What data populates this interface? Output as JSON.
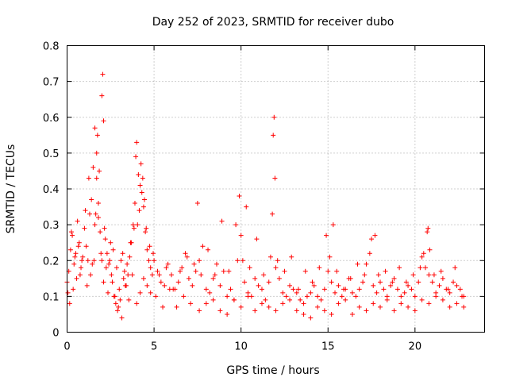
{
  "chart_data": {
    "type": "scatter",
    "title": "Day 252 of 2023, SRMTID for receiver dubo",
    "xlabel": "GPS time / hours",
    "ylabel": "SRMTID / TECUs",
    "xlim": [
      0,
      24
    ],
    "ylim": [
      0,
      0.8
    ],
    "x_ticks": [
      0,
      5,
      10,
      15,
      20
    ],
    "y_ticks": [
      0,
      0.1,
      0.2,
      0.3,
      0.4,
      0.5,
      0.6,
      0.7,
      0.8
    ],
    "x_tick_labels": [
      "0",
      "5",
      "10",
      "15",
      "20"
    ],
    "y_tick_labels": [
      "0",
      "0.1",
      "0.2",
      "0.3",
      "0.4",
      "0.5",
      "0.6",
      "0.7",
      "0.8"
    ],
    "grid": true,
    "marker": "+",
    "colors": {
      "series": "#ff0000",
      "grid": "#a0a0a0",
      "axes": "#000000"
    },
    "series": [
      {
        "name": "SRMTID",
        "x": [
          0.0,
          0.1,
          0.2,
          0.3,
          0.4,
          0.5,
          0.6,
          0.7,
          0.8,
          0.9,
          1.0,
          1.1,
          1.2,
          1.3,
          1.4,
          1.5,
          1.6,
          1.7,
          1.8,
          1.9,
          2.0,
          2.1,
          2.2,
          2.3,
          2.4,
          2.5,
          2.6,
          2.7,
          2.8,
          2.9,
          3.0,
          3.1,
          3.2,
          3.3,
          3.4,
          3.5,
          3.6,
          3.7,
          3.8,
          3.9,
          4.0,
          4.1,
          4.2,
          4.3,
          4.4,
          4.5,
          4.6,
          4.7,
          4.8,
          4.9,
          5.0,
          5.2,
          5.4,
          5.6,
          5.8,
          6.0,
          6.2,
          6.4,
          6.6,
          6.8,
          7.0,
          7.2,
          7.4,
          7.6,
          7.8,
          8.0,
          8.2,
          8.4,
          8.6,
          8.8,
          9.0,
          9.2,
          9.4,
          9.6,
          9.8,
          10.0,
          10.2,
          10.4,
          10.6,
          10.8,
          11.0,
          11.2,
          11.4,
          11.6,
          11.8,
          12.0,
          12.2,
          12.4,
          12.6,
          12.8,
          13.0,
          13.2,
          13.4,
          13.6,
          13.8,
          14.0,
          14.2,
          14.4,
          14.6,
          14.8,
          15.0,
          15.2,
          15.4,
          15.6,
          15.8,
          16.0,
          16.2,
          16.4,
          16.6,
          16.8,
          17.0,
          17.2,
          17.4,
          17.6,
          17.8,
          18.0,
          18.2,
          18.4,
          18.6,
          18.8,
          19.0,
          19.2,
          19.4,
          19.6,
          19.8,
          20.0,
          20.2,
          20.4,
          20.6,
          20.8,
          21.0,
          21.2,
          21.4,
          21.6,
          21.8,
          22.0,
          22.2,
          22.4,
          22.6,
          22.8,
          0.05,
          0.25,
          0.45,
          0.65,
          0.85,
          1.05,
          1.25,
          1.45,
          1.55,
          1.65,
          1.75,
          1.85,
          1.95,
          2.05,
          2.15,
          2.25,
          2.45,
          2.65,
          2.85,
          3.05,
          3.25,
          3.45,
          3.65,
          3.85,
          3.95,
          4.05,
          4.15,
          4.25,
          4.35,
          4.45,
          4.55,
          4.75,
          4.95,
          5.3,
          5.7,
          6.1,
          6.5,
          6.9,
          7.3,
          7.5,
          7.7,
          8.1,
          8.5,
          8.9,
          9.3,
          9.7,
          9.9,
          10.1,
          10.3,
          10.5,
          10.9,
          11.3,
          11.7,
          11.85,
          11.9,
          11.95,
          12.1,
          12.5,
          12.9,
          13.3,
          13.7,
          14.1,
          14.5,
          14.9,
          15.1,
          15.3,
          15.5,
          15.9,
          16.3,
          16.7,
          17.1,
          17.5,
          17.7,
          17.9,
          18.3,
          18.7,
          19.1,
          19.5,
          19.9,
          20.3,
          20.5,
          20.7,
          20.75,
          20.85,
          21.1,
          21.5,
          21.9,
          22.3,
          22.7,
          0.15,
          0.35,
          0.55,
          0.75,
          1.15,
          1.35,
          1.6,
          1.7,
          1.8,
          2.0,
          2.1,
          2.35,
          2.55,
          2.75,
          2.95,
          3.15,
          3.35,
          3.55,
          3.75,
          4.0,
          4.2,
          4.4,
          4.6,
          4.8,
          5.1,
          5.5,
          5.9,
          6.3,
          6.7,
          7.1,
          7.6,
          8.0,
          8.4,
          8.8,
          9.2,
          9.6,
          10.0,
          10.4,
          10.8,
          11.2,
          11.6,
          12.0,
          12.4,
          12.8,
          13.2,
          13.6,
          14.0,
          14.4,
          14.8,
          15.2,
          15.6,
          16.0,
          16.4,
          16.8,
          17.2,
          17.6,
          18.0,
          18.4,
          18.8,
          19.2,
          19.6,
          20.0,
          20.4,
          20.8,
          21.2,
          21.6,
          22.0,
          22.4,
          22.8
        ],
        "y": [
          0.14,
          0.17,
          0.23,
          0.27,
          0.19,
          0.22,
          0.31,
          0.25,
          0.18,
          0.21,
          0.29,
          0.24,
          0.2,
          0.33,
          0.37,
          0.46,
          0.57,
          0.5,
          0.36,
          0.28,
          0.66,
          0.59,
          0.26,
          0.22,
          0.19,
          0.25,
          0.14,
          0.1,
          0.08,
          0.06,
          0.12,
          0.2,
          0.22,
          0.17,
          0.13,
          0.16,
          0.21,
          0.25,
          0.3,
          0.36,
          0.53,
          0.44,
          0.41,
          0.39,
          0.35,
          0.28,
          0.23,
          0.2,
          0.18,
          0.16,
          0.2,
          0.17,
          0.14,
          0.13,
          0.19,
          0.16,
          0.12,
          0.14,
          0.18,
          0.22,
          0.15,
          0.13,
          0.17,
          0.2,
          0.24,
          0.12,
          0.11,
          0.15,
          0.19,
          0.13,
          0.17,
          0.1,
          0.12,
          0.09,
          0.2,
          0.27,
          0.14,
          0.11,
          0.1,
          0.15,
          0.13,
          0.12,
          0.09,
          0.14,
          0.33,
          0.18,
          0.15,
          0.11,
          0.1,
          0.13,
          0.12,
          0.11,
          0.09,
          0.08,
          0.1,
          0.11,
          0.13,
          0.1,
          0.09,
          0.12,
          0.17,
          0.14,
          0.11,
          0.13,
          0.1,
          0.12,
          0.15,
          0.11,
          0.1,
          0.12,
          0.14,
          0.19,
          0.22,
          0.13,
          0.11,
          0.14,
          0.12,
          0.1,
          0.13,
          0.15,
          0.12,
          0.1,
          0.11,
          0.13,
          0.12,
          0.1,
          0.14,
          0.21,
          0.18,
          0.16,
          0.14,
          0.11,
          0.13,
          0.15,
          0.12,
          0.11,
          0.14,
          0.13,
          0.12,
          0.1,
          0.11,
          0.28,
          0.21,
          0.24,
          0.2,
          0.34,
          0.43,
          0.19,
          0.2,
          0.33,
          0.55,
          0.45,
          0.22,
          0.72,
          0.29,
          0.18,
          0.2,
          0.23,
          0.18,
          0.09,
          0.15,
          0.19,
          0.25,
          0.29,
          0.49,
          0.3,
          0.34,
          0.47,
          0.43,
          0.37,
          0.29,
          0.24,
          0.22,
          0.16,
          0.18,
          0.12,
          0.17,
          0.21,
          0.19,
          0.36,
          0.16,
          0.23,
          0.16,
          0.31,
          0.17,
          0.3,
          0.38,
          0.2,
          0.35,
          0.18,
          0.26,
          0.16,
          0.21,
          0.55,
          0.6,
          0.43,
          0.2,
          0.17,
          0.21,
          0.12,
          0.17,
          0.14,
          0.18,
          0.27,
          0.21,
          0.3,
          0.17,
          0.12,
          0.15,
          0.19,
          0.16,
          0.26,
          0.27,
          0.16,
          0.17,
          0.14,
          0.18,
          0.14,
          0.16,
          0.18,
          0.22,
          0.28,
          0.29,
          0.23,
          0.16,
          0.17,
          0.12,
          0.18,
          0.1,
          0.08,
          0.12,
          0.15,
          0.16,
          0.13,
          0.16,
          0.3,
          0.43,
          0.32,
          0.2,
          0.14,
          0.11,
          0.16,
          0.1,
          0.07,
          0.04,
          0.13,
          0.09,
          0.16,
          0.08,
          0.11,
          0.15,
          0.13,
          0.11,
          0.1,
          0.07,
          0.12,
          0.07,
          0.1,
          0.08,
          0.06,
          0.08,
          0.09,
          0.06,
          0.05,
          0.09,
          0.07,
          0.1,
          0.06,
          0.08,
          0.07,
          0.06,
          0.08,
          0.09,
          0.06,
          0.05,
          0.04,
          0.07,
          0.06,
          0.05,
          0.08,
          0.09,
          0.05,
          0.07,
          0.06,
          0.08,
          0.07,
          0.09,
          0.06,
          0.08,
          0.07,
          0.06,
          0.09,
          0.08,
          0.1,
          0.09,
          0.07,
          0.08,
          0.07
        ]
      }
    ]
  }
}
